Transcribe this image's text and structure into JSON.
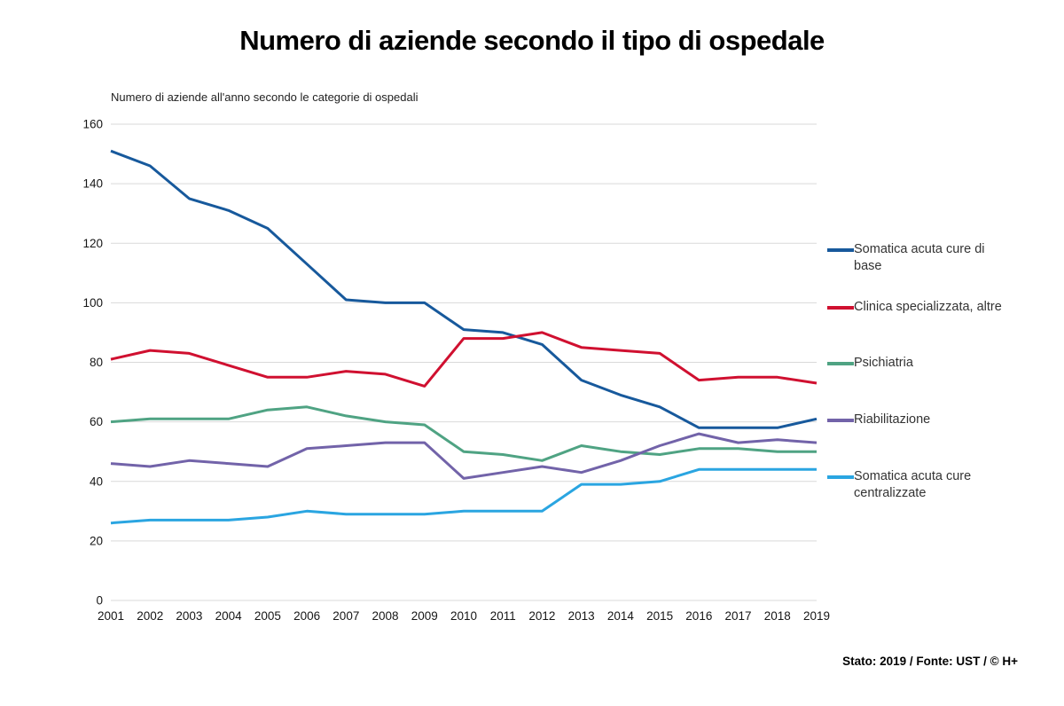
{
  "page": {
    "title": "Numero di aziende secondo il tipo di ospedale",
    "subtitle": "Numero di aziende all'anno secondo le categorie di ospedali",
    "footer": "Stato: 2019 / Fonte: UST / © H+"
  },
  "chart_data": {
    "type": "line",
    "x": [
      2001,
      2002,
      2003,
      2004,
      2005,
      2006,
      2007,
      2008,
      2009,
      2010,
      2011,
      2012,
      2013,
      2014,
      2015,
      2016,
      2017,
      2018,
      2019
    ],
    "series": [
      {
        "name": "Somatica acuta cure di base",
        "color": "#17599c",
        "values": [
          151,
          146,
          135,
          131,
          125,
          113,
          101,
          100,
          100,
          91,
          90,
          86,
          74,
          69,
          65,
          58,
          58,
          58,
          61
        ]
      },
      {
        "name": "Clinica specializzata, altre",
        "color": "#d01030",
        "values": [
          81,
          84,
          83,
          79,
          75,
          75,
          77,
          76,
          72,
          88,
          88,
          90,
          85,
          84,
          83,
          74,
          75,
          75,
          73
        ]
      },
      {
        "name": "Psichiatria",
        "color": "#4fa383",
        "values": [
          60,
          61,
          61,
          61,
          64,
          65,
          62,
          60,
          59,
          50,
          49,
          47,
          52,
          50,
          49,
          51,
          51,
          50,
          50
        ]
      },
      {
        "name": "Riabilitazione",
        "color": "#7263a9",
        "values": [
          46,
          45,
          47,
          46,
          45,
          51,
          52,
          53,
          53,
          41,
          43,
          45,
          43,
          47,
          52,
          56,
          53,
          54,
          53
        ]
      },
      {
        "name": "Somatica acuta cure centralizzate",
        "color": "#2aa5e1",
        "values": [
          26,
          27,
          27,
          27,
          28,
          30,
          29,
          29,
          29,
          30,
          30,
          30,
          39,
          39,
          40,
          44,
          44,
          44,
          44
        ]
      }
    ],
    "title": "Numero di aziende secondo il tipo di ospedale",
    "xlabel": "",
    "ylabel": "",
    "ylim": [
      0,
      160
    ],
    "yticks": [
      0,
      20,
      40,
      60,
      80,
      100,
      120,
      140,
      160
    ],
    "grid": true,
    "legend_position": "right",
    "grid_color": "#d9d9d9",
    "tick_color": "#161616"
  }
}
